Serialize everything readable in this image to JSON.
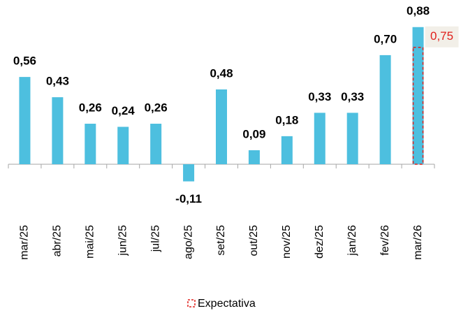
{
  "chart_data": {
    "type": "bar",
    "categories": [
      "mar/25",
      "abr/25",
      "mai/25",
      "jun/25",
      "jul/25",
      "ago/25",
      "set/25",
      "out/25",
      "nov/25",
      "dez/25",
      "jan/26",
      "fev/26",
      "mar/26"
    ],
    "values": [
      0.56,
      0.43,
      0.26,
      0.24,
      0.26,
      -0.11,
      0.48,
      0.09,
      0.18,
      0.33,
      0.33,
      0.7,
      0.88
    ],
    "value_labels": [
      "0,56",
      "0,43",
      "0,26",
      "0,24",
      "0,26",
      "-0,11",
      "0,48",
      "0,09",
      "0,18",
      "0,33",
      "0,33",
      "0,70",
      "0,88"
    ],
    "color": "#4dbfdf",
    "expectation": {
      "name": "Expectativa",
      "value": 0.75,
      "value_label": "0,75",
      "color": "#e0201c"
    }
  }
}
